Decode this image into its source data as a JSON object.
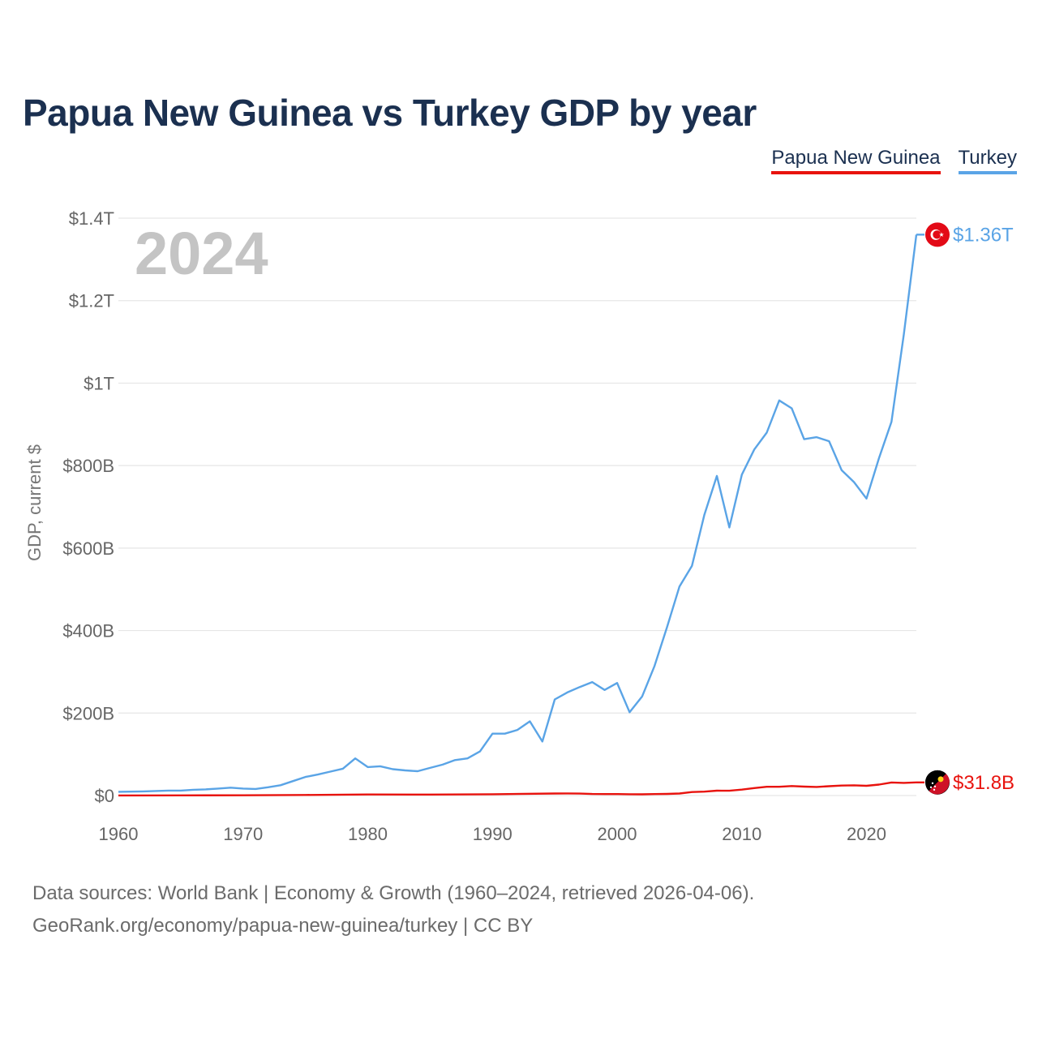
{
  "title": "Papua New Guinea vs Turkey GDP by year",
  "legend": [
    {
      "label": "Papua New Guinea",
      "color": "#e8130e"
    },
    {
      "label": "Turkey",
      "color": "#5aa4e6"
    }
  ],
  "source": {
    "line1": "Data sources: World Bank | Economy & Growth (1960–2024, retrieved 2026-04-06).",
    "line2": "GeoRank.org/economy/papua-new-guinea/turkey | CC BY"
  },
  "chart_data": {
    "type": "line",
    "title": "Papua New Guinea vs Turkey GDP by year",
    "year_marker": "2024",
    "xlabel": "",
    "ylabel": "GDP, current $",
    "xlim": [
      1960,
      2024
    ],
    "ylim": [
      0,
      1400
    ],
    "y_units": "billion US$",
    "x_ticks": [
      1960,
      1970,
      1980,
      1990,
      2000,
      2010,
      2020
    ],
    "y_ticks": [
      {
        "value": 0,
        "label": "$0"
      },
      {
        "value": 200,
        "label": "$200B"
      },
      {
        "value": 400,
        "label": "$400B"
      },
      {
        "value": 600,
        "label": "$600B"
      },
      {
        "value": 800,
        "label": "$800B"
      },
      {
        "value": 1000,
        "label": "$1T"
      },
      {
        "value": 1200,
        "label": "$1.2T"
      },
      {
        "value": 1400,
        "label": "$1.4T"
      }
    ],
    "grid": true,
    "legend_position": "top-right",
    "series": [
      {
        "name": "Turkey",
        "color": "#5aa4e6",
        "end_label": "$1.36T",
        "flag_icon": "turkey-flag-icon",
        "points": [
          [
            1960,
            9
          ],
          [
            1961,
            9.5
          ],
          [
            1962,
            10
          ],
          [
            1963,
            11
          ],
          [
            1964,
            12
          ],
          [
            1965,
            12
          ],
          [
            1966,
            14
          ],
          [
            1967,
            15
          ],
          [
            1968,
            17
          ],
          [
            1969,
            19
          ],
          [
            1970,
            17
          ],
          [
            1971,
            16
          ],
          [
            1972,
            20
          ],
          [
            1973,
            25
          ],
          [
            1974,
            35
          ],
          [
            1975,
            45
          ],
          [
            1976,
            51
          ],
          [
            1977,
            58
          ],
          [
            1978,
            65
          ],
          [
            1979,
            90
          ],
          [
            1980,
            69
          ],
          [
            1981,
            71
          ],
          [
            1982,
            64
          ],
          [
            1983,
            61
          ],
          [
            1984,
            59
          ],
          [
            1985,
            67
          ],
          [
            1986,
            75
          ],
          [
            1987,
            86
          ],
          [
            1988,
            90
          ],
          [
            1989,
            107
          ],
          [
            1990,
            150
          ],
          [
            1991,
            150
          ],
          [
            1992,
            159
          ],
          [
            1993,
            180
          ],
          [
            1994,
            131
          ],
          [
            1995,
            233
          ],
          [
            1996,
            250
          ],
          [
            1997,
            263
          ],
          [
            1998,
            275
          ],
          [
            1999,
            256
          ],
          [
            2000,
            273
          ],
          [
            2001,
            202
          ],
          [
            2002,
            240
          ],
          [
            2003,
            314
          ],
          [
            2004,
            408
          ],
          [
            2005,
            507
          ],
          [
            2006,
            557
          ],
          [
            2007,
            681
          ],
          [
            2008,
            775
          ],
          [
            2009,
            650
          ],
          [
            2010,
            778
          ],
          [
            2011,
            839
          ],
          [
            2012,
            880
          ],
          [
            2013,
            958
          ],
          [
            2014,
            939
          ],
          [
            2015,
            864
          ],
          [
            2016,
            869
          ],
          [
            2017,
            859
          ],
          [
            2018,
            789
          ],
          [
            2019,
            760
          ],
          [
            2020,
            720
          ],
          [
            2021,
            818
          ],
          [
            2022,
            906
          ],
          [
            2023,
            1119
          ],
          [
            2024,
            1360
          ]
        ]
      },
      {
        "name": "Papua New Guinea",
        "color": "#e8130e",
        "end_label": "$31.8B",
        "flag_icon": "papua-new-guinea-flag-icon",
        "points": [
          [
            1960,
            0.2
          ],
          [
            1965,
            0.3
          ],
          [
            1970,
            0.6
          ],
          [
            1975,
            1.4
          ],
          [
            1980,
            2.5
          ],
          [
            1985,
            2.4
          ],
          [
            1990,
            3.2
          ],
          [
            1995,
            4.9
          ],
          [
            1996,
            5.2
          ],
          [
            1997,
            4.8
          ],
          [
            1998,
            3.8
          ],
          [
            1999,
            3.5
          ],
          [
            2000,
            3.5
          ],
          [
            2001,
            3.1
          ],
          [
            2002,
            3.0
          ],
          [
            2003,
            3.5
          ],
          [
            2004,
            3.9
          ],
          [
            2005,
            4.9
          ],
          [
            2006,
            8.4
          ],
          [
            2007,
            9.5
          ],
          [
            2008,
            11.7
          ],
          [
            2009,
            11.6
          ],
          [
            2010,
            14.3
          ],
          [
            2011,
            18.0
          ],
          [
            2012,
            21.3
          ],
          [
            2013,
            21.2
          ],
          [
            2014,
            23.0
          ],
          [
            2015,
            21.7
          ],
          [
            2016,
            20.8
          ],
          [
            2017,
            22.6
          ],
          [
            2018,
            24.1
          ],
          [
            2019,
            24.7
          ],
          [
            2020,
            23.6
          ],
          [
            2021,
            26.6
          ],
          [
            2022,
            31.7
          ],
          [
            2023,
            30.7
          ],
          [
            2024,
            31.8
          ]
        ]
      }
    ]
  }
}
